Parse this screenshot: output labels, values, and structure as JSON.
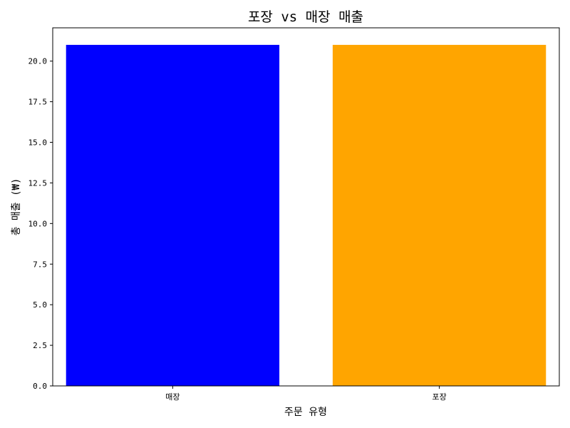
{
  "chart_data": {
    "type": "bar",
    "title": "포장 vs 매장 매출",
    "xlabel": "주문 유형",
    "ylabel": "총 매출 (₩)",
    "categories": [
      "매장",
      "포장"
    ],
    "values": [
      21,
      21
    ],
    "colors": [
      "#0000ff",
      "#ffa500"
    ],
    "ylim": [
      0,
      22.05
    ],
    "yticks": [
      0.0,
      2.5,
      5.0,
      7.5,
      10.0,
      12.5,
      15.0,
      17.5,
      20.0
    ],
    "ytick_labels": [
      "0.0",
      "2.5",
      "5.0",
      "7.5",
      "10.0",
      "12.5",
      "15.0",
      "17.5",
      "20.0"
    ],
    "grid": false,
    "legend": "none"
  }
}
